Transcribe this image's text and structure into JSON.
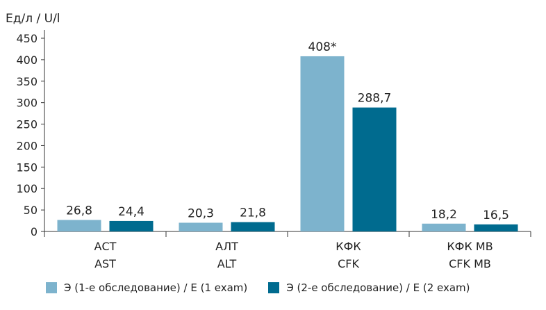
{
  "chart_data": {
    "type": "bar",
    "ylabel": "Ед/л / U/l",
    "ylim": [
      0,
      450
    ],
    "yticks": [
      0,
      50,
      100,
      150,
      200,
      250,
      300,
      350,
      400,
      450
    ],
    "grid": false,
    "legend_position": "bottom",
    "categories": [
      {
        "line1": "АСТ",
        "line2": "AST"
      },
      {
        "line1": "АЛТ",
        "line2": "ALT"
      },
      {
        "line1": "КФК",
        "line2": "CFK"
      },
      {
        "line1": "КФК MB",
        "line2": "CFK MB"
      }
    ],
    "series": [
      {
        "name": "Э (1-е обследование) / E (1 exam)",
        "color": "#7db3cd",
        "values": [
          26.8,
          20.3,
          408,
          18.2
        ],
        "labels": [
          "26,8",
          "20,3",
          "408*",
          "18,2"
        ]
      },
      {
        "name": "Э (2-е обследование) / E (2 exam)",
        "color": "#006b8f",
        "values": [
          24.4,
          21.8,
          288.7,
          16.5
        ],
        "labels": [
          "24,4",
          "21,8",
          "288,7",
          "16,5"
        ]
      }
    ]
  }
}
